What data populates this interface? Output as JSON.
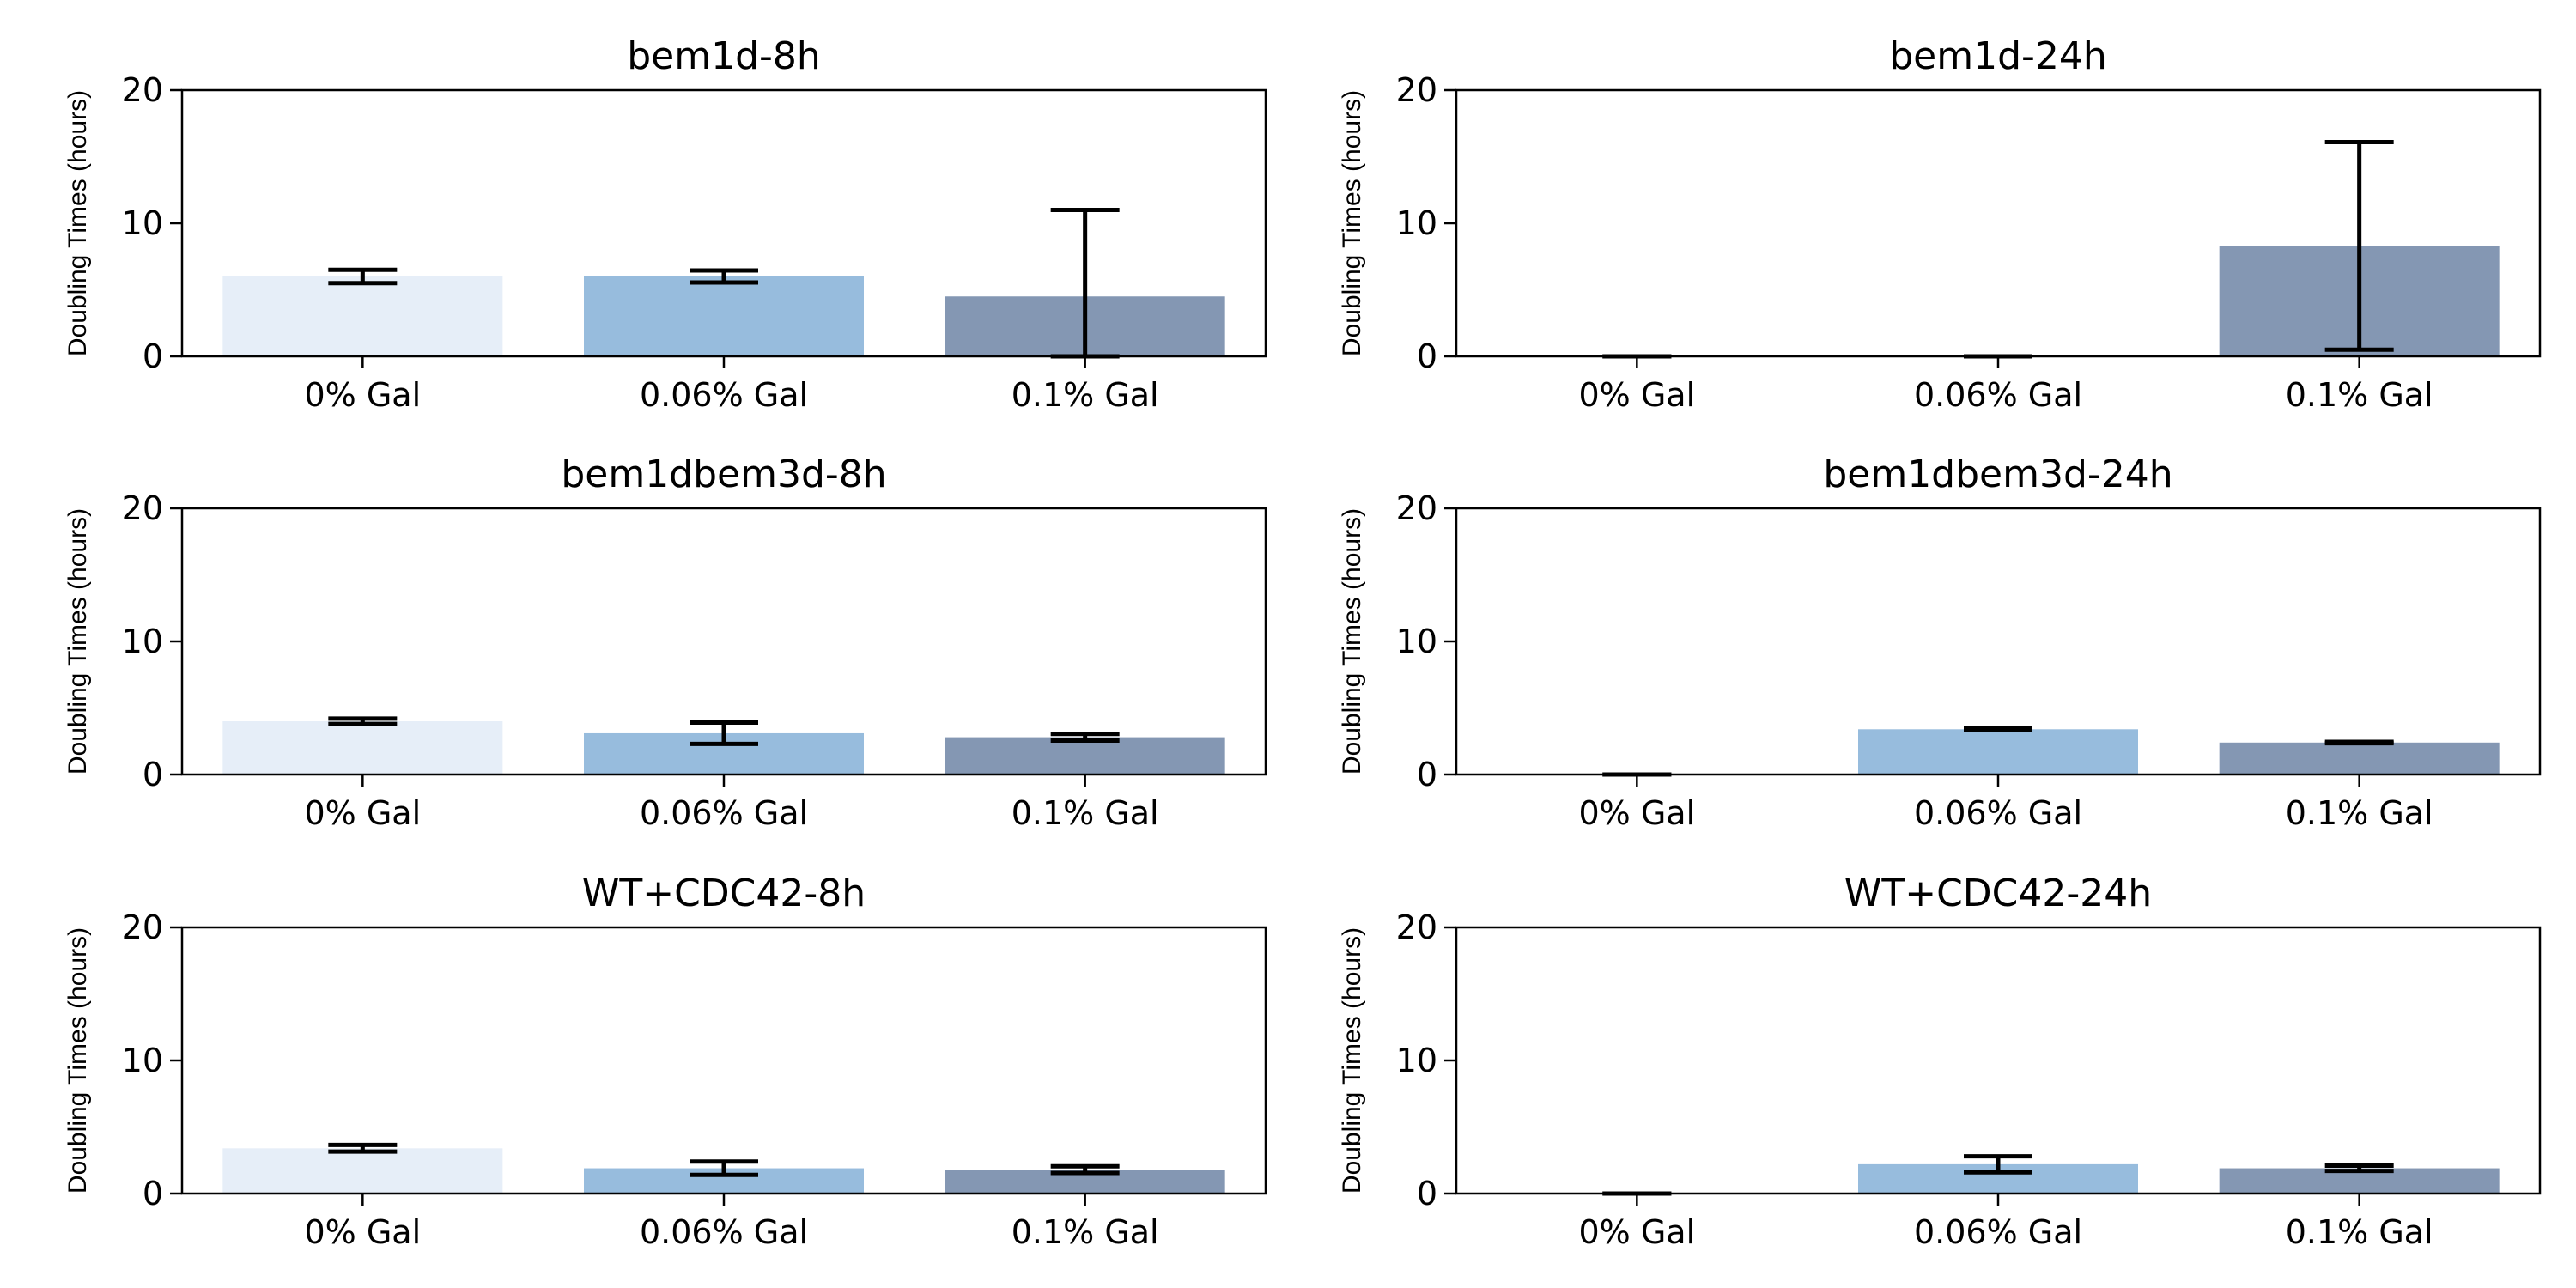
{
  "chart_data": [
    {
      "type": "bar",
      "title": "bem1d-8h",
      "ylabel": "Doubling Times (hours)",
      "ylim": [
        0,
        20
      ],
      "yticks": [
        "0",
        "10",
        "20"
      ],
      "categories": [
        "0% Gal",
        "0.06% Gal",
        "0.1% Gal"
      ],
      "values": [
        6.0,
        6.0,
        4.5
      ],
      "errors": [
        0.5,
        0.45,
        6.5
      ],
      "colors": [
        "#e6eef8",
        "#97bcdd",
        "#8497b3"
      ]
    },
    {
      "type": "bar",
      "title": "bem1d-24h",
      "ylabel": "Doubling Times (hours)",
      "ylim": [
        0,
        20
      ],
      "yticks": [
        "0",
        "10",
        "20"
      ],
      "categories": [
        "0% Gal",
        "0.06% Gal",
        "0.1% Gal"
      ],
      "values": [
        0,
        0,
        8.3
      ],
      "errors": [
        0,
        0,
        7.8
      ],
      "colors": [
        "#e6eef8",
        "#97bcdd",
        "#8497b3"
      ]
    },
    {
      "type": "bar",
      "title": "bem1dbem3d-8h",
      "ylabel": "Doubling Times (hours)",
      "ylim": [
        0,
        20
      ],
      "yticks": [
        "0",
        "10",
        "20"
      ],
      "categories": [
        "0% Gal",
        "0.06% Gal",
        "0.1% Gal"
      ],
      "values": [
        4.0,
        3.1,
        2.8
      ],
      "errors": [
        0.2,
        0.8,
        0.25
      ],
      "colors": [
        "#e6eef8",
        "#97bcdd",
        "#8497b3"
      ]
    },
    {
      "type": "bar",
      "title": "bem1dbem3d-24h",
      "ylabel": "Doubling Times (hours)",
      "ylim": [
        0,
        20
      ],
      "yticks": [
        "0",
        "10",
        "20"
      ],
      "categories": [
        "0% Gal",
        "0.06% Gal",
        "0.1% Gal"
      ],
      "values": [
        0,
        3.4,
        2.4
      ],
      "errors": [
        0,
        0.05,
        0.05
      ],
      "colors": [
        "#e6eef8",
        "#97bcdd",
        "#8497b3"
      ]
    },
    {
      "type": "bar",
      "title": "WT+CDC42-8h",
      "ylabel": "Doubling Times (hours)",
      "ylim": [
        0,
        20
      ],
      "yticks": [
        "0",
        "10",
        "20"
      ],
      "categories": [
        "0% Gal",
        "0.06% Gal",
        "0.1% Gal"
      ],
      "values": [
        3.4,
        1.9,
        1.8
      ],
      "errors": [
        0.25,
        0.5,
        0.25
      ],
      "colors": [
        "#e6eef8",
        "#97bcdd",
        "#8497b3"
      ]
    },
    {
      "type": "bar",
      "title": "WT+CDC42-24h",
      "ylabel": "Doubling Times (hours)",
      "ylim": [
        0,
        20
      ],
      "yticks": [
        "0",
        "10",
        "20"
      ],
      "categories": [
        "0% Gal",
        "0.06% Gal",
        "0.1% Gal"
      ],
      "values": [
        0,
        2.2,
        1.9
      ],
      "errors": [
        0,
        0.6,
        0.2
      ],
      "colors": [
        "#e6eef8",
        "#97bcdd",
        "#8497b3"
      ]
    }
  ]
}
